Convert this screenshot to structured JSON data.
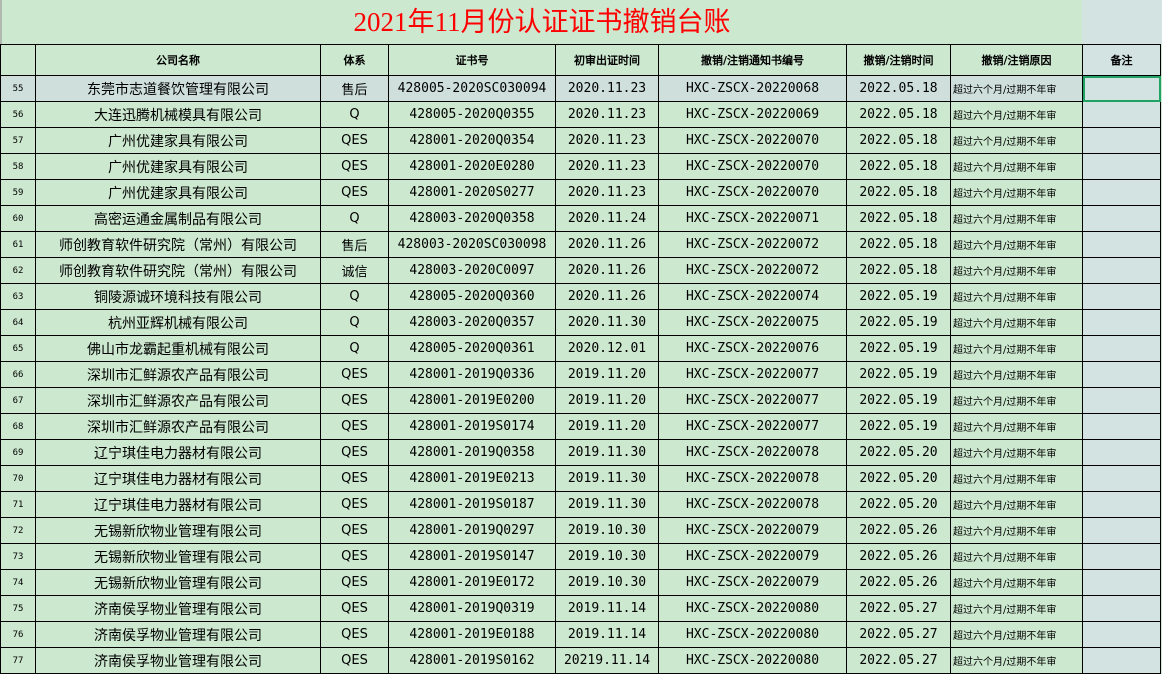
{
  "title": "2021年11月份认证证书撤销台账",
  "colors": {
    "background": "#cce8cf",
    "title": "#ff0000",
    "note_column": "#d3e3e1",
    "selection": "#21a366"
  },
  "headers": [
    "",
    "公司名称",
    "体系",
    "证书号",
    "初审出证时间",
    "撤销/注销通知书编号",
    "撤销/注销时间",
    "撤销/注销原因",
    "备注"
  ],
  "rows": [
    [
      "55",
      "东莞市志道餐饮管理有限公司",
      "售后",
      "428005-2020SC030094",
      "2020.11.23",
      "HXC-ZSCX-20220068",
      "2022.05.18",
      "超过六个月/过期不年审",
      ""
    ],
    [
      "56",
      "大连迅腾机械模具有限公司",
      "Q",
      "428005-2020Q0355",
      "2020.11.23",
      "HXC-ZSCX-20220069",
      "2022.05.18",
      "超过六个月/过期不年审",
      ""
    ],
    [
      "57",
      "广州优建家具有限公司",
      "QES",
      "428001-2020Q0354",
      "2020.11.23",
      "HXC-ZSCX-20220070",
      "2022.05.18",
      "超过六个月/过期不年审",
      ""
    ],
    [
      "58",
      "广州优建家具有限公司",
      "QES",
      "428001-2020E0280",
      "2020.11.23",
      "HXC-ZSCX-20220070",
      "2022.05.18",
      "超过六个月/过期不年审",
      ""
    ],
    [
      "59",
      "广州优建家具有限公司",
      "QES",
      "428001-2020S0277",
      "2020.11.23",
      "HXC-ZSCX-20220070",
      "2022.05.18",
      "超过六个月/过期不年审",
      ""
    ],
    [
      "60",
      "高密运通金属制品有限公司",
      "Q",
      "428003-2020Q0358",
      "2020.11.24",
      "HXC-ZSCX-20220071",
      "2022.05.18",
      "超过六个月/过期不年审",
      ""
    ],
    [
      "61",
      "师创教育软件研究院（常州）有限公司",
      "售后",
      "428003-2020SC030098",
      "2020.11.26",
      "HXC-ZSCX-20220072",
      "2022.05.18",
      "超过六个月/过期不年审",
      ""
    ],
    [
      "62",
      "师创教育软件研究院（常州）有限公司",
      "诚信",
      "428003-2020C0097",
      "2020.11.26",
      "HXC-ZSCX-20220072",
      "2022.05.18",
      "超过六个月/过期不年审",
      ""
    ],
    [
      "63",
      "铜陵源诚环境科技有限公司",
      "Q",
      "428005-2020Q0360",
      "2020.11.26",
      "HXC-ZSCX-20220074",
      "2022.05.19",
      "超过六个月/过期不年审",
      ""
    ],
    [
      "64",
      "杭州亚辉机械有限公司",
      "Q",
      "428003-2020Q0357",
      "2020.11.30",
      "HXC-ZSCX-20220075",
      "2022.05.19",
      "超过六个月/过期不年审",
      ""
    ],
    [
      "65",
      "佛山市龙霸起重机械有限公司",
      "Q",
      "428005-2020Q0361",
      "2020.12.01",
      "HXC-ZSCX-20220076",
      "2022.05.19",
      "超过六个月/过期不年审",
      ""
    ],
    [
      "66",
      "深圳市汇鲜源农产品有限公司",
      "QES",
      "428001-2019Q0336",
      "2019.11.20",
      "HXC-ZSCX-20220077",
      "2022.05.19",
      "超过六个月/过期不年审",
      ""
    ],
    [
      "67",
      "深圳市汇鲜源农产品有限公司",
      "QES",
      "428001-2019E0200",
      "2019.11.20",
      "HXC-ZSCX-20220077",
      "2022.05.19",
      "超过六个月/过期不年审",
      ""
    ],
    [
      "68",
      "深圳市汇鲜源农产品有限公司",
      "QES",
      "428001-2019S0174",
      "2019.11.20",
      "HXC-ZSCX-20220077",
      "2022.05.19",
      "超过六个月/过期不年审",
      ""
    ],
    [
      "69",
      "辽宁琪佳电力器材有限公司",
      "QES",
      "428001-2019Q0358",
      "2019.11.30",
      "HXC-ZSCX-20220078",
      "2022.05.20",
      "超过六个月/过期不年审",
      ""
    ],
    [
      "70",
      "辽宁琪佳电力器材有限公司",
      "QES",
      "428001-2019E0213",
      "2019.11.30",
      "HXC-ZSCX-20220078",
      "2022.05.20",
      "超过六个月/过期不年审",
      ""
    ],
    [
      "71",
      "辽宁琪佳电力器材有限公司",
      "QES",
      "428001-2019S0187",
      "2019.11.30",
      "HXC-ZSCX-20220078",
      "2022.05.20",
      "超过六个月/过期不年审",
      ""
    ],
    [
      "72",
      "无锡新欣物业管理有限公司",
      "QES",
      "428001-2019Q0297",
      "2019.10.30",
      "HXC-ZSCX-20220079",
      "2022.05.26",
      "超过六个月/过期不年审",
      ""
    ],
    [
      "73",
      "无锡新欣物业管理有限公司",
      "QES",
      "428001-2019S0147",
      "2019.10.30",
      "HXC-ZSCX-20220079",
      "2022.05.26",
      "超过六个月/过期不年审",
      ""
    ],
    [
      "74",
      "无锡新欣物业管理有限公司",
      "QES",
      "428001-2019E0172",
      "2019.10.30",
      "HXC-ZSCX-20220079",
      "2022.05.26",
      "超过六个月/过期不年审",
      ""
    ],
    [
      "75",
      "济南侯孚物业管理有限公司",
      "QES",
      "428001-2019Q0319",
      "2019.11.14",
      "HXC-ZSCX-20220080",
      "2022.05.27",
      "超过六个月/过期不年审",
      ""
    ],
    [
      "76",
      "济南侯孚物业管理有限公司",
      "QES",
      "428001-2019E0188",
      "2019.11.14",
      "HXC-ZSCX-20220080",
      "2022.05.27",
      "超过六个月/过期不年审",
      ""
    ],
    [
      "77",
      "济南侯孚物业管理有限公司",
      "QES",
      "428001-2019S0162",
      "20219.11.14",
      "HXC-ZSCX-20220080",
      "2022.05.27",
      "超过六个月/过期不年审",
      ""
    ]
  ]
}
